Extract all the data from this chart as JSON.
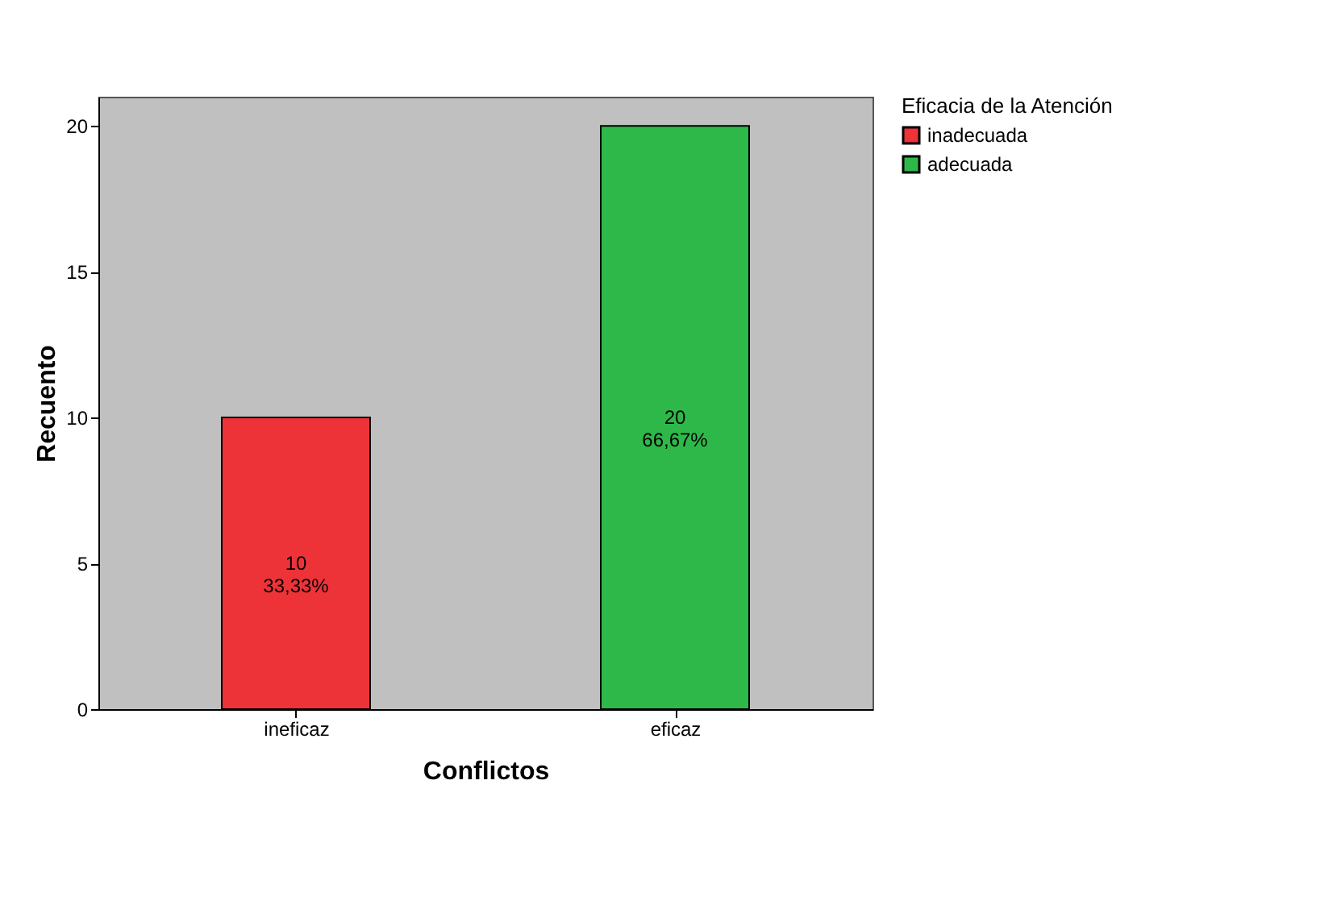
{
  "chart_data": {
    "type": "bar",
    "xlabel": "Conflictos",
    "ylabel": "Recuento",
    "legend_title": "Eficacia de la Atención",
    "categories": [
      "ineficaz",
      "eficaz"
    ],
    "series": [
      {
        "name": "inadecuada",
        "color": "#ee3338",
        "values": [
          10,
          null
        ],
        "value_labels": [
          "10\n33,33%",
          null
        ]
      },
      {
        "name": "adecuada",
        "color": "#2fb84a",
        "values": [
          null,
          20
        ],
        "value_labels": [
          null,
          "20\n66,67%"
        ]
      }
    ],
    "ylim": [
      0,
      21
    ],
    "yticks": [
      0,
      5,
      10,
      15,
      20
    ],
    "grid": false,
    "legend": "top right"
  }
}
